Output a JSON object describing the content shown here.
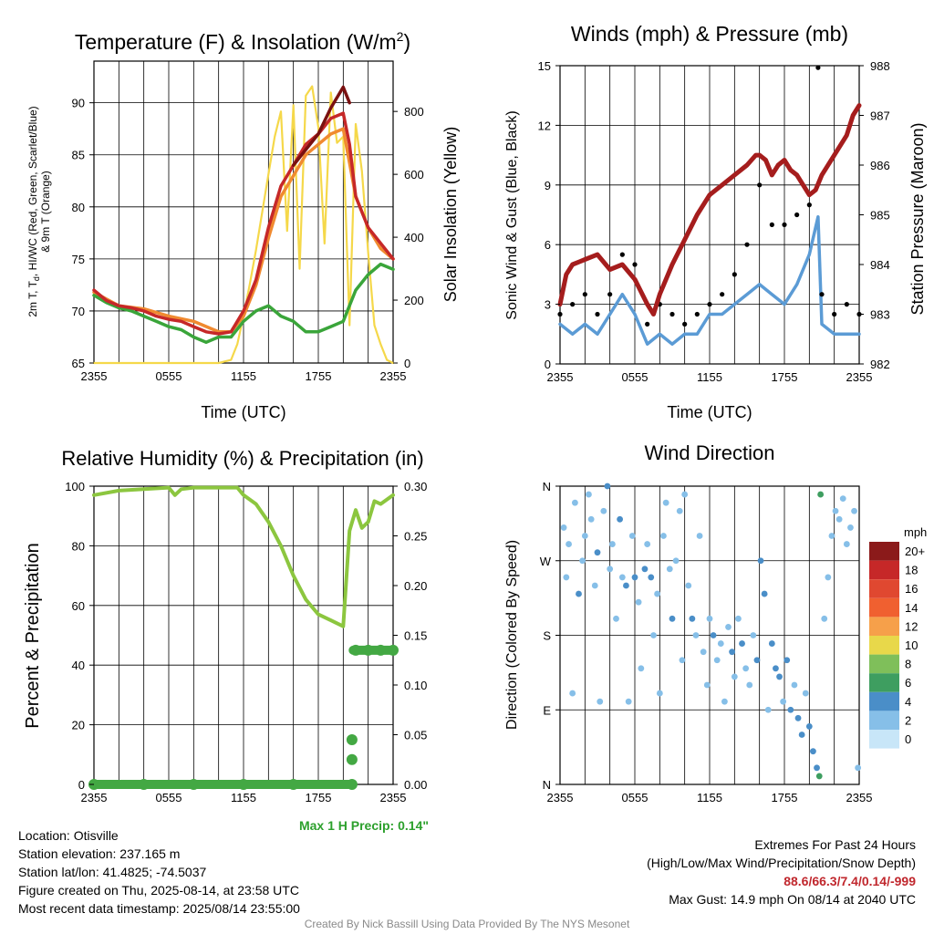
{
  "footer": {
    "location": "Location: Otisville",
    "elevation": "Station elevation: 237.165 m",
    "latlon": "Station lat/lon: 41.4825; -74.5037",
    "created": "Figure created on Thu, 2025-08-14, at 23:58 UTC",
    "recent": "Most recent data timestamp: 2025/08/14 23:55:00",
    "extremes_title": "Extremes For Past 24 Hours",
    "extremes_fields": "(High/Low/Max Wind/Precipitation/Snow Depth)",
    "extremes_values": "88.6/66.3/7.4/0.14/-999",
    "max_gust": "Max Gust: 14.9 mph On 08/14 at 2040 UTC",
    "credit": "Created By Nick Bassill Using Data Provided By The NYS Mesonet",
    "max_precip": "Max 1 H Precip: 0.14\""
  },
  "colors": {
    "temp_red": "#b22222",
    "dewpoint_green": "#3aa53a",
    "nine_m_orange": "#f08a30",
    "dark_red": "#7a1010",
    "solar_yellow": "#f5d84a",
    "sonic_wind_blue": "#5b9bd5",
    "pressure_maroon": "#a51d1d",
    "rh_green": "#8cc63f",
    "precip_green": "#43a843",
    "precip_label_green": "#2ca02c",
    "extremes_red": "#c0272d"
  },
  "chart_data": [
    {
      "id": "temperature",
      "type": "line",
      "title": "Temperature (F) & Insolation (W/m²)",
      "xlabel": "Time (UTC)",
      "ylabel": "2m T, T_d, HI/WC (Red, Green, Scarlet/Blue) & 9m T (Orange)",
      "y2label": "Solar Insolation (Yellow)",
      "xticks": [
        "2355",
        "0555",
        "1155",
        "1755",
        "2355"
      ],
      "x_hours": [
        0,
        6,
        12,
        18,
        24
      ],
      "ylim": [
        65,
        94
      ],
      "yticks": [
        65,
        70,
        75,
        80,
        85,
        90
      ],
      "y2lim": [
        0,
        960
      ],
      "y2ticks": [
        0,
        200,
        400,
        600,
        800
      ],
      "series": [
        {
          "name": "2m T",
          "color": "#c62828",
          "x": [
            0,
            1,
            2,
            3,
            4,
            5,
            6,
            7,
            8,
            9,
            10,
            11,
            12,
            13,
            14,
            15,
            16,
            17,
            18,
            19,
            20,
            20.5,
            21,
            22,
            23,
            24
          ],
          "y": [
            72,
            71,
            70.5,
            70.3,
            70,
            69.5,
            69.2,
            69,
            68.5,
            68,
            67.8,
            68,
            70,
            73,
            78,
            82,
            84,
            86,
            87,
            88.5,
            89,
            86,
            81,
            78,
            76.5,
            75
          ]
        },
        {
          "name": "HI",
          "color": "#7a1010",
          "x": [
            16,
            17,
            18,
            19,
            20,
            20.5
          ],
          "y": [
            84,
            85.5,
            87,
            89.5,
            91.5,
            90
          ]
        },
        {
          "name": "9m T",
          "color": "#f08a30",
          "x": [
            0,
            2,
            4,
            6,
            8,
            10,
            11,
            12,
            13,
            14,
            15,
            16,
            17,
            18,
            19,
            20,
            21,
            22,
            23,
            24
          ],
          "y": [
            71.8,
            70.5,
            70.2,
            69.5,
            69,
            68,
            68,
            69.5,
            72.5,
            77,
            81,
            83,
            85,
            86,
            87,
            87.5,
            81,
            78,
            76,
            75
          ]
        },
        {
          "name": "2m Td",
          "color": "#3aa53a",
          "x": [
            0,
            1,
            2,
            3,
            4,
            5,
            6,
            7,
            8,
            9,
            10,
            11,
            12,
            13,
            14,
            15,
            16,
            17,
            18,
            19,
            20,
            21,
            22,
            23,
            24
          ],
          "y": [
            71.5,
            70.8,
            70.3,
            70,
            69.5,
            69,
            68.5,
            68.2,
            67.5,
            67,
            67.5,
            67.5,
            69,
            70,
            70.5,
            69.5,
            69,
            68,
            68,
            68.5,
            69,
            72,
            73.5,
            74.5,
            74
          ]
        },
        {
          "name": "Solar",
          "axis": "y2",
          "color": "#f5d84a",
          "x": [
            0,
            10,
            11,
            11.5,
            12,
            12.5,
            13,
            13.5,
            14,
            14.5,
            15,
            15.5,
            16,
            16.5,
            17,
            17.5,
            18,
            18.5,
            19,
            19.5,
            20,
            20.5,
            21,
            21.5,
            22,
            22.5,
            23,
            23.5,
            24
          ],
          "y": [
            0,
            0,
            10,
            60,
            150,
            250,
            360,
            480,
            600,
            720,
            800,
            420,
            820,
            300,
            850,
            880,
            750,
            380,
            860,
            700,
            720,
            120,
            760,
            610,
            350,
            120,
            60,
            10,
            0
          ]
        }
      ]
    },
    {
      "id": "winds",
      "type": "line",
      "title": "Winds (mph) & Pressure (mb)",
      "xlabel": "Time (UTC)",
      "ylabel": "Sonic Wind & Gust (Blue, Black)",
      "y2label": "Station Pressure (Maroon)",
      "xticks": [
        "2355",
        "0555",
        "1155",
        "1755",
        "2355"
      ],
      "x_hours": [
        0,
        6,
        12,
        18,
        24
      ],
      "ylim": [
        0,
        15
      ],
      "yticks": [
        0,
        3,
        6,
        9,
        12,
        15
      ],
      "y2lim": [
        982,
        988
      ],
      "y2ticks": [
        982,
        983,
        984,
        985,
        986,
        987,
        988
      ],
      "series": [
        {
          "name": "Sonic Wind",
          "color": "#5b9bd5",
          "x": [
            0,
            1,
            2,
            3,
            4,
            5,
            6,
            7,
            8,
            9,
            10,
            11,
            12,
            13,
            14,
            15,
            16,
            17,
            18,
            19,
            20,
            20.7,
            21,
            22,
            23,
            24
          ],
          "y": [
            2,
            1.5,
            2,
            1.5,
            2.5,
            3.5,
            2.5,
            1,
            1.5,
            1,
            1.5,
            1.5,
            2.5,
            2.5,
            3,
            3.5,
            4,
            3.5,
            3,
            4,
            5.5,
            7.4,
            2,
            1.5,
            1.5,
            1.5
          ]
        },
        {
          "name": "Gust",
          "color": "#000000",
          "x": [
            0,
            1,
            2,
            3,
            4,
            5,
            6,
            7,
            8,
            9,
            10,
            11,
            12,
            13,
            14,
            15,
            16,
            17,
            18,
            19,
            20,
            20.7,
            21,
            22,
            23,
            24
          ],
          "y": [
            2.5,
            3,
            3.5,
            2.5,
            3.5,
            5.5,
            5,
            2,
            3,
            2.5,
            2,
            2.5,
            3,
            3.5,
            4.5,
            6,
            9,
            7,
            7,
            7.5,
            8,
            14.9,
            3.5,
            2.5,
            3,
            2.5
          ]
        },
        {
          "name": "Pressure",
          "axis": "y2",
          "color": "#a51d1d",
          "x": [
            0,
            0.5,
            1,
            2,
            3,
            4,
            5,
            6,
            7,
            7.5,
            8,
            9,
            10,
            11,
            12,
            13,
            14,
            15,
            15.7,
            16,
            16.5,
            17,
            17.5,
            18,
            18.5,
            19,
            19.5,
            20,
            20.5,
            21,
            22,
            23,
            23.5,
            24
          ],
          "y": [
            983.2,
            983.8,
            984.0,
            984.1,
            984.2,
            983.9,
            984.0,
            983.7,
            983.2,
            983.0,
            983.4,
            984.0,
            984.5,
            985.0,
            985.4,
            985.6,
            985.8,
            986.0,
            986.2,
            986.2,
            986.1,
            985.8,
            986.0,
            986.1,
            985.9,
            985.8,
            985.6,
            985.4,
            985.5,
            985.8,
            986.2,
            986.6,
            987.0,
            987.2
          ]
        }
      ]
    },
    {
      "id": "humidity",
      "type": "line",
      "title": "Relative Humidity (%) & Precipitation (in)",
      "xlabel": "",
      "ylabel": "Percent & Precipitation",
      "xticks": [
        "2355",
        "0555",
        "1155",
        "1755",
        "2355"
      ],
      "x_hours": [
        0,
        6,
        12,
        18,
        24
      ],
      "ylim": [
        0,
        100
      ],
      "yticks": [
        0,
        20,
        40,
        60,
        80,
        100
      ],
      "y2lim": [
        0,
        0.3
      ],
      "y2ticks": [
        "0.00",
        "0.05",
        "0.10",
        "0.15",
        "0.20",
        "0.25",
        "0.30"
      ],
      "series": [
        {
          "name": "RH",
          "color": "#8cc63f",
          "x": [
            0,
            2,
            4,
            6,
            6.5,
            7,
            8,
            10,
            11.5,
            12,
            13,
            14,
            15,
            16,
            17,
            18,
            19,
            20,
            20.5,
            21,
            21.5,
            22,
            22.5,
            23,
            24
          ],
          "y": [
            97,
            98.5,
            99,
            99.5,
            97,
            99,
            99.5,
            99.5,
            99.5,
            97,
            94,
            88,
            80,
            70,
            62,
            57,
            55,
            53,
            85,
            92,
            86,
            88,
            95,
            94,
            97
          ]
        },
        {
          "name": "Precipitation",
          "axis": "y2",
          "color": "#43a843",
          "x": [
            0,
            4,
            8,
            12,
            16,
            20.7,
            20.7,
            20.7,
            21,
            22,
            23,
            24
          ],
          "y": [
            0,
            0,
            0,
            0,
            0,
            0,
            0.025,
            0.045,
            0.135,
            0.135,
            0.135,
            0.135
          ]
        }
      ]
    },
    {
      "id": "wind_direction",
      "type": "scatter",
      "title": "Wind Direction",
      "ylabel": "Direction (Colored By Speed)",
      "xticks": [
        "2355",
        "0555",
        "1155",
        "1755",
        "2355"
      ],
      "x_hours": [
        0,
        6,
        12,
        18,
        24
      ],
      "yticks": [
        "N",
        "E",
        "S",
        "W",
        "N"
      ],
      "ylim": [
        0,
        360
      ],
      "legend_unit": "mph",
      "legend_labels": [
        "20+",
        "18",
        "16",
        "14",
        "12",
        "10",
        "8",
        "6",
        "4",
        "2",
        "0"
      ],
      "legend_colors": [
        "#8b1a1a",
        "#c62828",
        "#e04830",
        "#f06030",
        "#f6a04a",
        "#e8d84a",
        "#7fbf5a",
        "#3e9e60",
        "#4a8ec8",
        "#86bfe8",
        "#c8e6f8"
      ],
      "points": [
        [
          0.3,
          310,
          2
        ],
        [
          0.5,
          250,
          2
        ],
        [
          0.7,
          290,
          1
        ],
        [
          1.0,
          110,
          1
        ],
        [
          1.2,
          340,
          2
        ],
        [
          1.5,
          230,
          3
        ],
        [
          1.8,
          270,
          2
        ],
        [
          2.0,
          300,
          1
        ],
        [
          2.3,
          350,
          2
        ],
        [
          2.5,
          320,
          1
        ],
        [
          2.8,
          240,
          2
        ],
        [
          3.0,
          280,
          3
        ],
        [
          3.2,
          100,
          1
        ],
        [
          3.5,
          330,
          2
        ],
        [
          3.8,
          360,
          3
        ],
        [
          4.0,
          260,
          2
        ],
        [
          4.2,
          290,
          1
        ],
        [
          4.5,
          200,
          2
        ],
        [
          4.8,
          320,
          3
        ],
        [
          5.0,
          250,
          2
        ],
        [
          5.3,
          240,
          3
        ],
        [
          5.5,
          100,
          1
        ],
        [
          5.8,
          300,
          2
        ],
        [
          6.0,
          250,
          3
        ],
        [
          6.3,
          220,
          2
        ],
        [
          6.5,
          140,
          1
        ],
        [
          6.8,
          260,
          3
        ],
        [
          7.0,
          290,
          2
        ],
        [
          7.3,
          250,
          3
        ],
        [
          7.5,
          180,
          2
        ],
        [
          7.8,
          230,
          1
        ],
        [
          8.0,
          110,
          2
        ],
        [
          8.3,
          300,
          2
        ],
        [
          8.5,
          340,
          1
        ],
        [
          8.8,
          260,
          2
        ],
        [
          9.0,
          200,
          3
        ],
        [
          9.3,
          270,
          2
        ],
        [
          9.6,
          330,
          1
        ],
        [
          9.8,
          150,
          1
        ],
        [
          10.0,
          350,
          2
        ],
        [
          10.3,
          240,
          2
        ],
        [
          10.6,
          200,
          3
        ],
        [
          10.9,
          180,
          2
        ],
        [
          11.2,
          300,
          1
        ],
        [
          11.5,
          160,
          2
        ],
        [
          11.8,
          120,
          1
        ],
        [
          12.0,
          200,
          2
        ],
        [
          12.3,
          180,
          3
        ],
        [
          12.6,
          150,
          2
        ],
        [
          12.9,
          170,
          2
        ],
        [
          13.2,
          100,
          1
        ],
        [
          13.5,
          190,
          2
        ],
        [
          13.8,
          160,
          3
        ],
        [
          14.0,
          130,
          2
        ],
        [
          14.3,
          200,
          2
        ],
        [
          14.6,
          170,
          3
        ],
        [
          14.9,
          140,
          2
        ],
        [
          15.2,
          120,
          1
        ],
        [
          15.5,
          180,
          2
        ],
        [
          15.8,
          150,
          3
        ],
        [
          16.1,
          270,
          4
        ],
        [
          16.4,
          230,
          3
        ],
        [
          16.7,
          90,
          2
        ],
        [
          17.0,
          170,
          3
        ],
        [
          17.3,
          140,
          4
        ],
        [
          17.6,
          130,
          3
        ],
        [
          17.9,
          100,
          2
        ],
        [
          18.2,
          150,
          3
        ],
        [
          18.5,
          90,
          4
        ],
        [
          18.8,
          120,
          2
        ],
        [
          19.1,
          80,
          3
        ],
        [
          19.4,
          60,
          3
        ],
        [
          19.7,
          110,
          2
        ],
        [
          20.0,
          70,
          3
        ],
        [
          20.3,
          40,
          4
        ],
        [
          20.6,
          20,
          3
        ],
        [
          20.8,
          10,
          6
        ],
        [
          20.9,
          350,
          6
        ],
        [
          21.2,
          200,
          2
        ],
        [
          21.5,
          250,
          2
        ],
        [
          21.8,
          300,
          1
        ],
        [
          22.1,
          330,
          2
        ],
        [
          22.4,
          320,
          1
        ],
        [
          22.7,
          345,
          2
        ],
        [
          23.0,
          290,
          2
        ],
        [
          23.3,
          310,
          1
        ],
        [
          23.6,
          330,
          2
        ],
        [
          23.9,
          20,
          1
        ]
      ]
    }
  ]
}
